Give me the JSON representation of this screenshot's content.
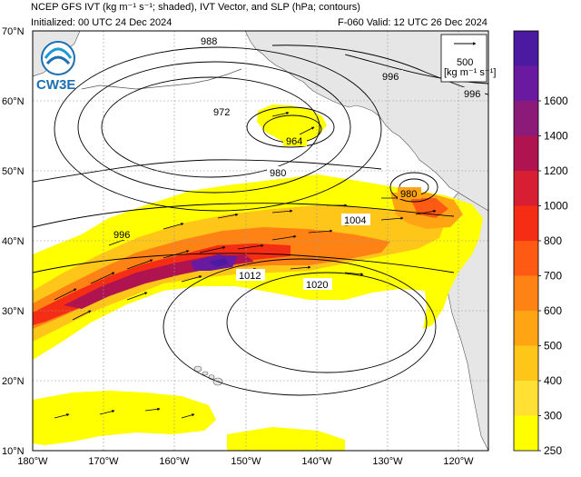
{
  "header": {
    "title_line": "NCEP GFS IVT (kg m⁻¹ s⁻¹; shaded), IVT Vector, and SLP (hPa; contours)",
    "init_line": "Initialized: 00 UTC 24 Dec 2024",
    "valid_line": "F-060  Valid: 12 UTC 26 Dec 2024"
  },
  "logo": {
    "text": "CW3E",
    "icon": "cw3e-logo-icon"
  },
  "vector_key": {
    "value": "500",
    "units": "[kg m⁻¹ s⁻¹]"
  },
  "axes": {
    "lat_ticks": [
      "70°N",
      "60°N",
      "50°N",
      "40°N",
      "30°N",
      "20°N",
      "10°N"
    ],
    "lon_ticks": [
      "180°W",
      "170°W",
      "160°W",
      "150°W",
      "140°W",
      "130°W",
      "120°W"
    ]
  },
  "colorbar": {
    "levels": [
      "250",
      "300",
      "400",
      "500",
      "600",
      "700",
      "800",
      "1000",
      "1200",
      "1400",
      "1600"
    ],
    "colors": [
      "#ffff00",
      "#ffe033",
      "#ffc61a",
      "#ffa514",
      "#ff8314",
      "#ff5a14",
      "#f52d14",
      "#d81e32",
      "#b01450",
      "#8c1a78",
      "#6a1aa0",
      "#4b1aa0"
    ]
  },
  "slp_labels": [
    "988",
    "996",
    "996",
    "972",
    "964",
    "980",
    "980",
    "1004",
    "996",
    "1012",
    "1020"
  ],
  "colors": {
    "land": "#e6e6e6",
    "grid": "#9a9a9a",
    "contour": "#000000"
  }
}
